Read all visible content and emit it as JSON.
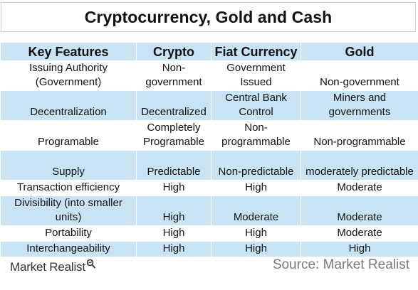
{
  "title": "Cryptocurrency, Gold and Cash",
  "table": {
    "headers": [
      "Key Features",
      "Crypto",
      "Fiat Currency",
      "Gold"
    ],
    "rows": [
      [
        "Issuing Authority (Government)",
        "Non-government",
        "Government Issued",
        "Non-government"
      ],
      [
        "Decentralization",
        "Decentralized",
        "Central Bank Control",
        "Miners and governments"
      ],
      [
        "Programable",
        "Completely Programable",
        "Non-programmable",
        "Non-programmable"
      ],
      [
        "Supply",
        "Predictable",
        "Non-predictable",
        "moderately predictable"
      ],
      [
        "Transaction efficiency",
        "High",
        "High",
        "Moderate"
      ],
      [
        "Divisibility (into smaller units)",
        "High",
        "Moderate",
        "Moderate"
      ],
      [
        "Portability",
        "High",
        "High",
        "Moderate"
      ],
      [
        "Interchangeability",
        "High",
        "High",
        "High"
      ]
    ]
  },
  "footer": {
    "logo_text": "Market Realist",
    "source_text": "Source: Market Realist"
  },
  "colors": {
    "row_blue": "#c8e3f3",
    "source_gray": "#7a7a7a"
  }
}
